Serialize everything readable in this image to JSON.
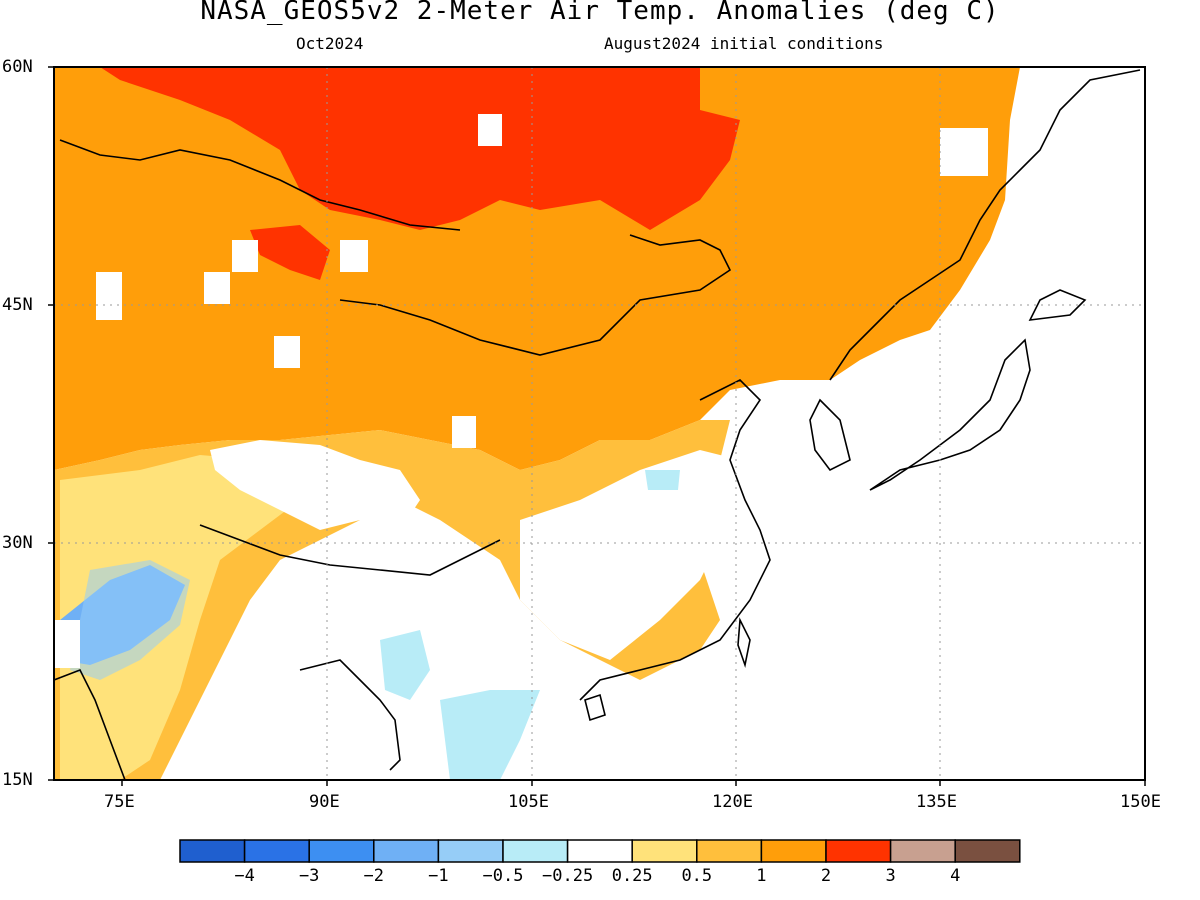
{
  "title": "NASA_GEOS5v2 2-Meter Air Temp. Anomalies (deg C)",
  "subtitle_left": "Oct2024",
  "subtitle_right": "August2024 initial conditions",
  "axes": {
    "lon_ticks": [
      "75E",
      "90E",
      "105E",
      "120E",
      "135E",
      "150E"
    ],
    "lat_ticks": [
      "60N",
      "45N",
      "30N",
      "15N"
    ],
    "lon_range": [
      70,
      150
    ],
    "lat_range": [
      15,
      60
    ],
    "grid": "dotted"
  },
  "colorbar": {
    "labels": [
      "−4",
      "−3",
      "−2",
      "−1",
      "−0.5",
      "−0.25",
      "0.25",
      "0.5",
      "1",
      "2",
      "3",
      "4"
    ],
    "colors": [
      "#1f5fcf",
      "#2a72e6",
      "#3d8ff2",
      "#6fb0f5",
      "#96cdf7",
      "#b8ecf7",
      "#ffffff",
      "#ffe27a",
      "#ffbf3c",
      "#ff9e0a",
      "#ff3300",
      "#c8a090",
      "#7a5040"
    ]
  }
}
